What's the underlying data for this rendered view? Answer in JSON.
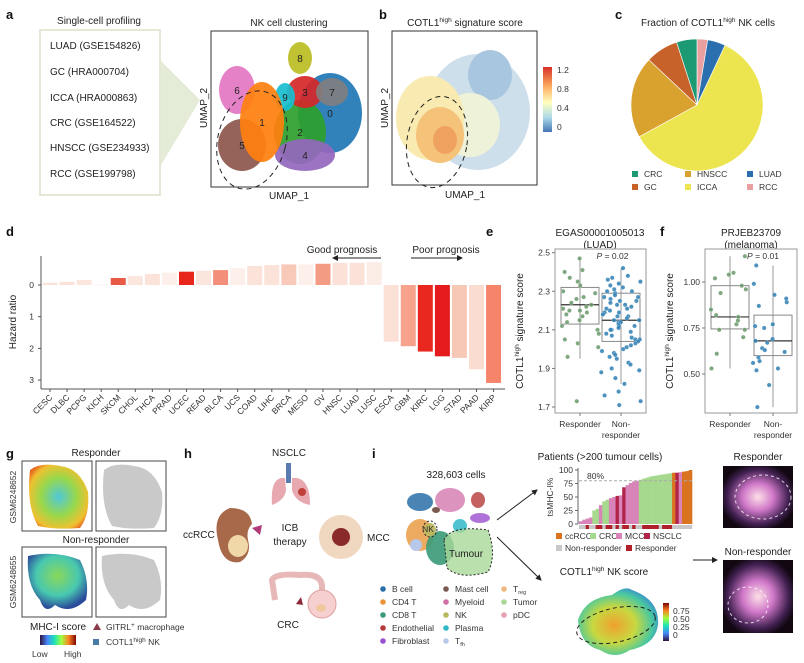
{
  "panel_labels": {
    "a": "a",
    "b": "b",
    "c": "c",
    "d": "d",
    "e": "e",
    "f": "f",
    "g": "g",
    "h": "h",
    "i": "i"
  },
  "a": {
    "title": "Single-cell profiling",
    "datasets": [
      "LUAD (GSE154826)",
      "GC (HRA000704)",
      "ICCA (HRA000863)",
      "CRC (GSE164522)",
      "HNSCC (GSE234933)",
      "RCC (GSE199798)"
    ],
    "umap_title": "NK cell clustering",
    "xlabel": "UMAP_1",
    "ylabel": "UMAP_2",
    "clusters": [
      {
        "id": "0",
        "color": "#1f77b4"
      },
      {
        "id": "1",
        "color": "#ff7f0e"
      },
      {
        "id": "2",
        "color": "#2ca02c"
      },
      {
        "id": "3",
        "color": "#d62728"
      },
      {
        "id": "4",
        "color": "#9467bd"
      },
      {
        "id": "5",
        "color": "#8c564b"
      },
      {
        "id": "6",
        "color": "#e377c2"
      },
      {
        "id": "7",
        "color": "#7f7f7f"
      },
      {
        "id": "8",
        "color": "#bcbd22"
      },
      {
        "id": "9",
        "color": "#17becf"
      }
    ]
  },
  "b": {
    "title": [
      "COTL1",
      "high",
      " signature score"
    ],
    "xlabel": "UMAP_1",
    "ylabel": "UMAP_2",
    "colorbar_ticks": [
      "1.2",
      "0.8",
      "0.4",
      "0"
    ],
    "colormap": [
      "#d73027",
      "#fdae61",
      "#ffffbf",
      "#abd9e9",
      "#4575b4"
    ]
  },
  "chart_data": [
    {
      "type": "pie",
      "title": [
        "Fraction of COTL1",
        "high",
        " NK cells"
      ],
      "legend": "bottom",
      "slices": [
        {
          "label": "CRC",
          "value": 0.05,
          "color": "#1b9a74"
        },
        {
          "label": "GC",
          "value": 0.08,
          "color": "#c7622b"
        },
        {
          "label": "HNSCC",
          "value": 0.2,
          "color": "#d9a12e"
        },
        {
          "label": "ICCA",
          "value": 0.6,
          "color": "#ece54f"
        },
        {
          "label": "LUAD",
          "value": 0.044,
          "color": "#2c6fae"
        },
        {
          "label": "RCC",
          "value": 0.026,
          "color": "#eaa0a0"
        }
      ]
    },
    {
      "type": "bar",
      "ylabel": "Hazard ratio",
      "yticks": [
        "0",
        "1",
        "2",
        "3"
      ],
      "ylim": [
        -0.8,
        3.2
      ],
      "y_inverted": true,
      "annotations": {
        "good": "Good prognosis",
        "poor": "Poor prognosis"
      },
      "categories": [
        "CESC",
        "DLBC",
        "PCPG",
        "KICH",
        "SKCM",
        "CHOL",
        "THCA",
        "PRAD",
        "UCEC",
        "READ",
        "BLCA",
        "UCS",
        "COAD",
        "LIHC",
        "BRCA",
        "MESO",
        "OV",
        "HNSC",
        "LUAD",
        "LUSC",
        "ESCA",
        "GBM",
        "KIRC",
        "LGG",
        "STAD",
        "PAAD",
        "KIRP"
      ],
      "values": [
        -0.07,
        -0.1,
        -0.16,
        -0.02,
        -0.22,
        -0.28,
        -0.35,
        -0.39,
        -0.42,
        -0.45,
        -0.47,
        -0.53,
        -0.6,
        -0.63,
        -0.65,
        -0.65,
        -0.67,
        -0.7,
        -0.7,
        -0.72,
        1.79,
        1.93,
        2.1,
        2.25,
        2.3,
        2.66,
        3.09
      ],
      "colors": [
        "#fbe3da",
        "#fbe1d7",
        "#fbe6dd",
        "#fdf3ef",
        "#e85a45",
        "#fbe6de",
        "#fbe3da",
        "#fdf0eb",
        "#e8261b",
        "#fbe6de",
        "#f28e79",
        "#fdf0eb",
        "#fbe3da",
        "#fbe3da",
        "#f8c9b9",
        "#fdf0eb",
        "#f49b84",
        "#fbe1d7",
        "#fbe1d7",
        "#fbece6",
        "#fbe0d5",
        "#f6a28d",
        "#e8281e",
        "#e41a1c",
        "#f8c8b7",
        "#fbdcd0",
        "#f5846b"
      ]
    },
    {
      "type": "box",
      "title": [
        "EGAS00001005013",
        "(LUAD)"
      ],
      "ylabel": [
        "COTL1",
        "high",
        " signature score"
      ],
      "yticks": [
        "2.5",
        "2.3",
        "2.1",
        "1.9",
        "1.7"
      ],
      "ylim": [
        1.7,
        2.5
      ],
      "pvalue": [
        "P",
        " = 0.02"
      ],
      "groups": [
        {
          "label": "Responder",
          "color": "#6a9a6a",
          "box": {
            "min": 1.95,
            "q1": 2.13,
            "median": 2.23,
            "q3": 2.32,
            "max": 2.47
          },
          "points": [
            2.47,
            2.41,
            2.4,
            2.37,
            2.35,
            2.33,
            2.3,
            2.29,
            2.27,
            2.26,
            2.24,
            2.23,
            2.22,
            2.21,
            2.2,
            2.2,
            2.19,
            2.18,
            2.17,
            2.15,
            2.14,
            2.12,
            2.1,
            2.08,
            2.05,
            2.03,
            2.01,
            1.96,
            1.73
          ]
        },
        {
          "label": "Non-\nresponder",
          "label_lines": [
            "Non-",
            "responder"
          ],
          "color": "#2f7fb5",
          "box": {
            "min": 1.82,
            "q1": 2.04,
            "median": 2.15,
            "q3": 2.29,
            "max": 2.42
          },
          "points": [
            2.42,
            2.38,
            2.37,
            2.36,
            2.35,
            2.34,
            2.33,
            2.32,
            2.31,
            2.3,
            2.3,
            2.29,
            2.28,
            2.27,
            2.27,
            2.26,
            2.25,
            2.25,
            2.24,
            2.23,
            2.23,
            2.22,
            2.21,
            2.21,
            2.2,
            2.19,
            2.19,
            2.18,
            2.17,
            2.17,
            2.16,
            2.15,
            2.15,
            2.14,
            2.14,
            2.13,
            2.12,
            2.12,
            2.11,
            2.1,
            2.1,
            2.09,
            2.08,
            2.07,
            2.06,
            2.05,
            2.05,
            2.04,
            2.03,
            2.02,
            2.01,
            2.0,
            1.99,
            1.98,
            1.97,
            1.96,
            1.95,
            1.93,
            1.92,
            1.9,
            1.89,
            1.88,
            1.85,
            1.82,
            1.78,
            1.76,
            1.73,
            1.71
          ]
        }
      ]
    },
    {
      "type": "box",
      "title": [
        "PRJEB23709",
        "(melanoma)"
      ],
      "ylabel": [
        "COTL1",
        "high",
        " signature score"
      ],
      "yticks": [
        "1.00",
        "0.75",
        "0.50"
      ],
      "ylim": [
        0.3,
        1.2
      ],
      "pvalue": [
        "P",
        " = 0.01"
      ],
      "groups": [
        {
          "label": "Responder",
          "color": "#6a9a6a",
          "box": {
            "min": 0.53,
            "q1": 0.745,
            "median": 0.81,
            "q3": 0.98,
            "max": 1.14
          },
          "points": [
            1.14,
            1.05,
            1.04,
            1.02,
            0.98,
            0.96,
            0.94,
            0.85,
            0.82,
            0.81,
            0.79,
            0.77,
            0.74,
            0.74,
            0.7,
            0.61,
            0.53
          ]
        },
        {
          "label": "Non-\nresponder",
          "label_lines": [
            "Non-",
            "responder"
          ],
          "color": "#2f7fb5",
          "box": {
            "min": 0.32,
            "q1": 0.6,
            "median": 0.68,
            "q3": 0.82,
            "max": 1.09
          },
          "points": [
            1.09,
            0.99,
            0.93,
            0.91,
            0.89,
            0.87,
            0.77,
            0.76,
            0.75,
            0.69,
            0.68,
            0.67,
            0.64,
            0.63,
            0.62,
            0.59,
            0.57,
            0.56,
            0.53,
            0.52,
            0.44,
            0.32
          ]
        }
      ]
    },
    {
      "type": "bar",
      "title": "Patients (>200 tumour cells)",
      "ylabel": "tsMHC-I%",
      "yticks": [
        "100",
        "75",
        "50",
        "25",
        "0"
      ],
      "ylim": [
        0,
        100
      ],
      "reference_line": {
        "value": 80,
        "label": "80%"
      },
      "cohort_colors": {
        "ccRCC": "#d9731f",
        "CRC": "#a6d98e",
        "MCC": "#d884b8",
        "NSCLC": "#b0244a"
      },
      "response_colors": {
        "Non-responder": "#c8c8c8",
        "Responder": "#b0202a"
      },
      "legend": [
        {
          "label": "ccRCC",
          "color": "#d9731f"
        },
        {
          "label": "CRC",
          "color": "#a6d98e"
        },
        {
          "label": "MCC",
          "color": "#d884b8"
        },
        {
          "label": "NSCLC",
          "color": "#b0244a"
        },
        {
          "label": "Non-responder",
          "color": "#c8c8c8"
        },
        {
          "label": "Responder",
          "color": "#b0202a"
        }
      ],
      "values": [
        5,
        8,
        10,
        12,
        25,
        28,
        35,
        42,
        45,
        48,
        50,
        52,
        53,
        68,
        72,
        76,
        79,
        80,
        82,
        84,
        86,
        88,
        89,
        90,
        91,
        92,
        93,
        94,
        95,
        95,
        96,
        97,
        98,
        100
      ],
      "cohorts": [
        "MCC",
        "MCC",
        "MCC",
        "MCC",
        "CRC",
        "CRC",
        "MCC",
        "CRC",
        "CRC",
        "MCC",
        "MCC",
        "NSCLC",
        "MCC",
        "NSCLC",
        "MCC",
        "MCC",
        "MCC",
        "MCC",
        "CRC",
        "CRC",
        "CRC",
        "CRC",
        "CRC",
        "CRC",
        "CRC",
        "CRC",
        "CRC",
        "CRC",
        "ccRCC",
        "NSCLC",
        "MCC",
        "ccRCC",
        "ccRCC",
        "ccRCC"
      ],
      "response": [
        "N",
        "N",
        "R",
        "N",
        "N",
        "R",
        "R",
        "N",
        "R",
        "R",
        "N",
        "R",
        "N",
        "R",
        "R",
        "N",
        "R",
        "N",
        "N",
        "R",
        "R",
        "R",
        "R",
        "R",
        "N",
        "R",
        "R",
        "R",
        "N",
        "N",
        "N",
        "N",
        "N",
        "N"
      ]
    }
  ],
  "g": {
    "responder": "Responder",
    "non_responder": "Non-responder",
    "sample1": "GSM6248652",
    "sample2": "GSM6248655",
    "score_label": "MHC-I score",
    "low": "Low",
    "high": "High",
    "legend_macrophage": [
      "GITRL",
      "+",
      " macrophage"
    ],
    "legend_nk": [
      "COTL1",
      "high",
      " NK"
    ],
    "macrophage_color": "#8b3a4a",
    "nk_color": "#4a7aa8"
  },
  "h": {
    "nsclc": "NSCLC",
    "ccrcc": "ccRCC",
    "center": [
      "ICB",
      "therapy"
    ],
    "mcc": "MCC",
    "crc": "CRC"
  },
  "i": {
    "cells": "328,603 cells",
    "nk_label": "NK",
    "tumour_label": "Tumour",
    "legend": [
      {
        "label": "B cell",
        "color": "#2a6fa8"
      },
      {
        "label": "CD4 T",
        "color": "#e8953a"
      },
      {
        "label": "CD8 T",
        "color": "#3a9a78"
      },
      {
        "label": "Endothelial",
        "color": "#b53a3a"
      },
      {
        "label": "Fibroblast",
        "color": "#9a4fd0"
      },
      {
        "label": "Mast cell",
        "color": "#7a5a50"
      },
      {
        "label": "Myeloid",
        "color": "#d070a8"
      },
      {
        "label": "NK",
        "color": "#b8b860"
      },
      {
        "label": "Plasma",
        "color": "#30b8c8"
      },
      {
        "label": "T",
        "sub": "fh",
        "color": "#b8c8e8"
      },
      {
        "label": "T",
        "sub": "reg",
        "color": "#f0b880"
      },
      {
        "label": "Tumor",
        "color": "#a8d898"
      },
      {
        "label": "pDC",
        "color": "#e8a0b0"
      }
    ],
    "score_title": [
      "COTL1",
      "high",
      " NK score"
    ],
    "score_ticks": [
      "0.75",
      "0.50",
      "0.25",
      "0"
    ],
    "responder": "Responder",
    "non_responder": "Non-responder"
  }
}
